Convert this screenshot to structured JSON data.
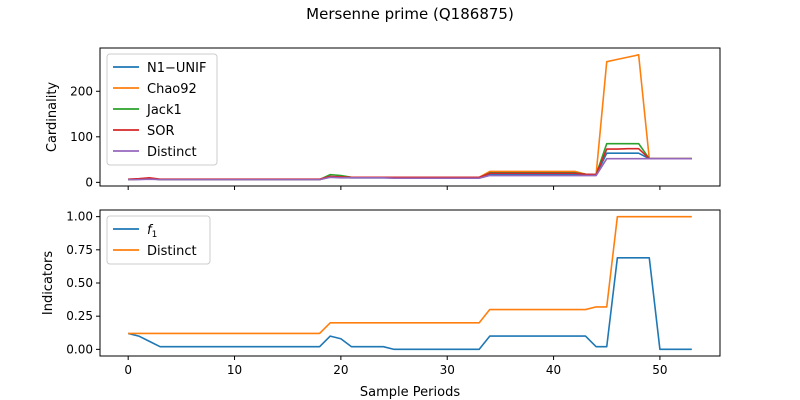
{
  "figure": {
    "title": "Mersenne prime (Q186875)",
    "xlabel": "Sample Periods"
  },
  "chart_data": [
    {
      "type": "line",
      "ylabel": "Cardinality",
      "xlim": [
        -2.65,
        55.65
      ],
      "ylim": [
        -8,
        295
      ],
      "xticks": [
        0,
        10,
        20,
        30,
        40,
        50
      ],
      "yticks": [
        0,
        100,
        200
      ],
      "legend": "upper-left",
      "grid": false,
      "x": [
        0,
        1,
        2,
        3,
        4,
        5,
        6,
        7,
        8,
        9,
        10,
        11,
        12,
        13,
        14,
        15,
        16,
        17,
        18,
        19,
        20,
        21,
        22,
        23,
        24,
        25,
        26,
        27,
        28,
        29,
        30,
        31,
        32,
        33,
        34,
        35,
        36,
        37,
        38,
        39,
        40,
        41,
        42,
        43,
        44,
        45,
        46,
        47,
        48,
        49,
        50,
        51,
        52,
        53
      ],
      "series": [
        {
          "name": "N1−UNIF",
          "color": "#1f77b4",
          "values": [
            6,
            7,
            8,
            6,
            6,
            6,
            6,
            6,
            6,
            6,
            6,
            6,
            6,
            6,
            6,
            6,
            6,
            6,
            6,
            12,
            11,
            10,
            10,
            10,
            10,
            10,
            10,
            10,
            10,
            10,
            10,
            10,
            10,
            10,
            18,
            18,
            18,
            18,
            18,
            18,
            18,
            18,
            18,
            17,
            16,
            64,
            64,
            64,
            64,
            52,
            52,
            52,
            52,
            52
          ]
        },
        {
          "name": "Chao92",
          "color": "#ff7f0e",
          "values": [
            6,
            7,
            9,
            6,
            6,
            6,
            6,
            6,
            6,
            6,
            6,
            6,
            6,
            6,
            6,
            6,
            6,
            6,
            6,
            12,
            12,
            11,
            11,
            11,
            11,
            11,
            11,
            11,
            11,
            11,
            11,
            11,
            11,
            11,
            24,
            24,
            24,
            24,
            24,
            24,
            24,
            24,
            24,
            18,
            17,
            265,
            270,
            275,
            280,
            52,
            52,
            52,
            52,
            52
          ]
        },
        {
          "name": "Jack1",
          "color": "#2ca02c",
          "values": [
            6,
            7,
            9,
            6,
            6,
            6,
            6,
            6,
            6,
            6,
            6,
            6,
            6,
            6,
            6,
            6,
            6,
            6,
            6,
            17,
            15,
            11,
            11,
            11,
            11,
            10,
            10,
            10,
            10,
            10,
            10,
            10,
            10,
            10,
            21,
            21,
            21,
            21,
            21,
            21,
            21,
            21,
            21,
            18,
            17,
            85,
            85,
            85,
            85,
            52,
            52,
            52,
            52,
            52
          ]
        },
        {
          "name": "SOR",
          "color": "#d62728",
          "values": [
            7,
            8,
            10,
            7,
            7,
            7,
            7,
            7,
            7,
            7,
            7,
            7,
            7,
            7,
            7,
            7,
            7,
            7,
            7,
            13,
            12,
            11,
            11,
            11,
            11,
            11,
            11,
            11,
            11,
            11,
            11,
            11,
            11,
            11,
            20,
            20,
            20,
            20,
            20,
            20,
            20,
            20,
            20,
            18,
            17,
            73,
            73,
            74,
            74,
            52,
            52,
            52,
            52,
            52
          ]
        },
        {
          "name": "Distinct",
          "color": "#9467bd",
          "values": [
            6,
            6,
            7,
            6,
            6,
            6,
            6,
            6,
            6,
            6,
            6,
            6,
            6,
            6,
            6,
            6,
            6,
            6,
            6,
            11,
            10,
            10,
            10,
            10,
            10,
            9,
            9,
            9,
            9,
            9,
            9,
            9,
            9,
            9,
            15,
            15,
            15,
            15,
            15,
            15,
            15,
            15,
            15,
            15,
            15,
            52,
            52,
            52,
            52,
            52,
            52,
            52,
            52,
            52
          ]
        }
      ]
    },
    {
      "type": "line",
      "ylabel": "Indicators",
      "xlim": [
        -2.65,
        55.65
      ],
      "ylim": [
        -0.05,
        1.05
      ],
      "xticks": [
        0,
        10,
        20,
        30,
        40,
        50
      ],
      "yticks": [
        0.0,
        0.25,
        0.5,
        0.75,
        1.0
      ],
      "ytick_labels": [
        "0.00",
        "0.25",
        "0.50",
        "0.75",
        "1.00"
      ],
      "legend": "upper-left",
      "grid": false,
      "x": [
        0,
        1,
        2,
        3,
        4,
        5,
        6,
        7,
        8,
        9,
        10,
        11,
        12,
        13,
        14,
        15,
        16,
        17,
        18,
        19,
        20,
        21,
        22,
        23,
        24,
        25,
        26,
        27,
        28,
        29,
        30,
        31,
        32,
        33,
        34,
        35,
        36,
        37,
        38,
        39,
        40,
        41,
        42,
        43,
        44,
        45,
        46,
        47,
        48,
        49,
        50,
        51,
        52,
        53
      ],
      "series": [
        {
          "name": "f1",
          "color": "#1f77b4",
          "values": [
            0.12,
            0.1,
            0.06,
            0.02,
            0.02,
            0.02,
            0.02,
            0.02,
            0.02,
            0.02,
            0.02,
            0.02,
            0.02,
            0.02,
            0.02,
            0.02,
            0.02,
            0.02,
            0.02,
            0.1,
            0.08,
            0.02,
            0.02,
            0.02,
            0.02,
            0.0,
            0.0,
            0.0,
            0.0,
            0.0,
            0.0,
            0.0,
            0.0,
            0.0,
            0.1,
            0.1,
            0.1,
            0.1,
            0.1,
            0.1,
            0.1,
            0.1,
            0.1,
            0.1,
            0.02,
            0.02,
            0.69,
            0.69,
            0.69,
            0.69,
            0.0,
            0.0,
            0.0,
            0.0
          ]
        },
        {
          "name": "Distinct",
          "color": "#ff7f0e",
          "values": [
            0.12,
            0.12,
            0.12,
            0.12,
            0.12,
            0.12,
            0.12,
            0.12,
            0.12,
            0.12,
            0.12,
            0.12,
            0.12,
            0.12,
            0.12,
            0.12,
            0.12,
            0.12,
            0.12,
            0.2,
            0.2,
            0.2,
            0.2,
            0.2,
            0.2,
            0.2,
            0.2,
            0.2,
            0.2,
            0.2,
            0.2,
            0.2,
            0.2,
            0.2,
            0.3,
            0.3,
            0.3,
            0.3,
            0.3,
            0.3,
            0.3,
            0.3,
            0.3,
            0.3,
            0.32,
            0.32,
            1.0,
            1.0,
            1.0,
            1.0,
            1.0,
            1.0,
            1.0,
            1.0
          ]
        }
      ]
    }
  ]
}
